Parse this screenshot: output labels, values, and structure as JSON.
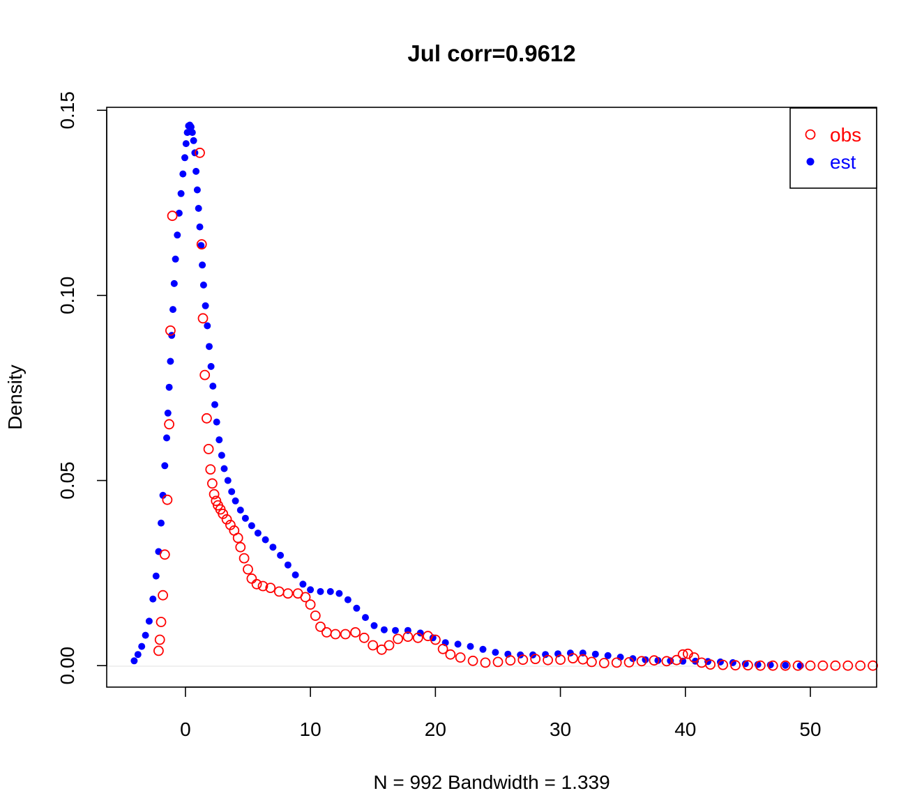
{
  "chart_data": {
    "type": "scatter",
    "title": "Jul corr=0.9612",
    "xlabel": "N = 992   Bandwidth = 1.339",
    "ylabel": "Density",
    "xlim": [
      -6.3,
      55.3
    ],
    "ylim": [
      -0.0058,
      0.1508
    ],
    "x_ticks": [
      0,
      10,
      20,
      30,
      40,
      50
    ],
    "x_tick_labels": [
      "0",
      "10",
      "20",
      "30",
      "40",
      "50"
    ],
    "y_ticks": [
      0.0,
      0.05,
      0.1,
      0.15
    ],
    "y_tick_labels": [
      "0.00",
      "0.05",
      "0.10",
      "0.15"
    ],
    "zero_line": true,
    "grid": false,
    "legend": {
      "position": "top-right"
    },
    "series": [
      {
        "name": "obs",
        "marker": "open-circle",
        "color": "#ff0000",
        "points": [
          [
            -2.15,
            0.004
          ],
          [
            -2.05,
            0.007
          ],
          [
            -1.95,
            0.0118
          ],
          [
            -1.8,
            0.019
          ],
          [
            -1.65,
            0.03
          ],
          [
            -1.45,
            0.0448
          ],
          [
            -1.3,
            0.0652
          ],
          [
            -1.2,
            0.0905
          ],
          [
            -1.05,
            0.1215
          ],
          [
            1.15,
            0.1385
          ],
          [
            1.3,
            0.1138
          ],
          [
            1.4,
            0.0938
          ],
          [
            1.55,
            0.0785
          ],
          [
            1.7,
            0.0668
          ],
          [
            1.85,
            0.0585
          ],
          [
            2.0,
            0.053
          ],
          [
            2.15,
            0.0492
          ],
          [
            2.3,
            0.0463
          ],
          [
            2.45,
            0.0445
          ],
          [
            2.6,
            0.0433
          ],
          [
            2.8,
            0.0422
          ],
          [
            3.0,
            0.041
          ],
          [
            3.3,
            0.0395
          ],
          [
            3.6,
            0.038
          ],
          [
            3.9,
            0.0365
          ],
          [
            4.2,
            0.0345
          ],
          [
            4.4,
            0.032
          ],
          [
            4.7,
            0.029
          ],
          [
            5.0,
            0.026
          ],
          [
            5.3,
            0.0235
          ],
          [
            5.7,
            0.022
          ],
          [
            6.2,
            0.0215
          ],
          [
            6.8,
            0.021
          ],
          [
            7.5,
            0.02
          ],
          [
            8.2,
            0.0195
          ],
          [
            9.0,
            0.0195
          ],
          [
            9.6,
            0.0185
          ],
          [
            10.0,
            0.0165
          ],
          [
            10.4,
            0.0135
          ],
          [
            10.8,
            0.0105
          ],
          [
            11.3,
            0.009
          ],
          [
            12.0,
            0.0085
          ],
          [
            12.8,
            0.0085
          ],
          [
            13.6,
            0.009
          ],
          [
            14.3,
            0.0075
          ],
          [
            15.0,
            0.0055
          ],
          [
            15.7,
            0.0043
          ],
          [
            16.3,
            0.0055
          ],
          [
            17.0,
            0.0072
          ],
          [
            17.8,
            0.0078
          ],
          [
            18.6,
            0.0075
          ],
          [
            19.4,
            0.008
          ],
          [
            20.0,
            0.007
          ],
          [
            20.6,
            0.0045
          ],
          [
            21.2,
            0.003
          ],
          [
            22.0,
            0.0022
          ],
          [
            23.0,
            0.0013
          ],
          [
            24.0,
            0.0008
          ],
          [
            25.0,
            0.001
          ],
          [
            26.0,
            0.0014
          ],
          [
            27.0,
            0.0016
          ],
          [
            28.0,
            0.0018
          ],
          [
            29.0,
            0.0015
          ],
          [
            30.0,
            0.0016
          ],
          [
            31.0,
            0.002
          ],
          [
            31.8,
            0.0017
          ],
          [
            32.5,
            0.001
          ],
          [
            33.5,
            0.0007
          ],
          [
            34.5,
            0.0008
          ],
          [
            35.5,
            0.0009
          ],
          [
            36.5,
            0.0012
          ],
          [
            37.5,
            0.0014
          ],
          [
            38.5,
            0.0012
          ],
          [
            39.3,
            0.0015
          ],
          [
            39.8,
            0.003
          ],
          [
            40.2,
            0.0032
          ],
          [
            40.7,
            0.0022
          ],
          [
            41.3,
            0.0008
          ],
          [
            42.0,
            0.0003
          ],
          [
            43.0,
            0.0002
          ],
          [
            44.0,
            0.0001
          ],
          [
            45.0,
            0.0001
          ],
          [
            46.0,
            0.0
          ],
          [
            47.0,
            0.0
          ],
          [
            48.0,
            0.0
          ],
          [
            49.0,
            0.0
          ],
          [
            50.0,
            0.0
          ],
          [
            51.0,
            0.0
          ],
          [
            52.0,
            0.0
          ],
          [
            53.0,
            0.0
          ],
          [
            54.0,
            0.0
          ],
          [
            55.0,
            0.0
          ]
        ]
      },
      {
        "name": "est",
        "marker": "filled-circle",
        "color": "#0000ff",
        "points": [
          [
            -4.1,
            0.0013
          ],
          [
            -3.8,
            0.003
          ],
          [
            -3.5,
            0.0052
          ],
          [
            -3.2,
            0.0082
          ],
          [
            -2.9,
            0.012
          ],
          [
            -2.6,
            0.018
          ],
          [
            -2.35,
            0.0242
          ],
          [
            -2.15,
            0.0308
          ],
          [
            -1.95,
            0.0385
          ],
          [
            -1.8,
            0.046
          ],
          [
            -1.65,
            0.054
          ],
          [
            -1.5,
            0.0615
          ],
          [
            -1.4,
            0.0682
          ],
          [
            -1.3,
            0.0752
          ],
          [
            -1.2,
            0.0822
          ],
          [
            -1.1,
            0.0892
          ],
          [
            -1.0,
            0.0962
          ],
          [
            -0.9,
            0.1032
          ],
          [
            -0.8,
            0.1098
          ],
          [
            -0.65,
            0.1163
          ],
          [
            -0.5,
            0.1222
          ],
          [
            -0.35,
            0.1275
          ],
          [
            -0.2,
            0.1328
          ],
          [
            -0.05,
            0.1372
          ],
          [
            0.05,
            0.141
          ],
          [
            0.15,
            0.144
          ],
          [
            0.25,
            0.1458
          ],
          [
            0.35,
            0.146
          ],
          [
            0.45,
            0.1455
          ],
          [
            0.55,
            0.144
          ],
          [
            0.65,
            0.1418
          ],
          [
            0.75,
            0.1385
          ],
          [
            0.85,
            0.1335
          ],
          [
            0.95,
            0.1285
          ],
          [
            1.05,
            0.1235
          ],
          [
            1.15,
            0.1185
          ],
          [
            1.25,
            0.1135
          ],
          [
            1.35,
            0.1082
          ],
          [
            1.45,
            0.1028
          ],
          [
            1.6,
            0.0972
          ],
          [
            1.75,
            0.0918
          ],
          [
            1.9,
            0.0862
          ],
          [
            2.05,
            0.0808
          ],
          [
            2.2,
            0.0755
          ],
          [
            2.35,
            0.0705
          ],
          [
            2.5,
            0.0658
          ],
          [
            2.7,
            0.061
          ],
          [
            2.9,
            0.0568
          ],
          [
            3.1,
            0.0532
          ],
          [
            3.4,
            0.05
          ],
          [
            3.7,
            0.047
          ],
          [
            4.0,
            0.0445
          ],
          [
            4.4,
            0.042
          ],
          [
            4.8,
            0.0398
          ],
          [
            5.3,
            0.0378
          ],
          [
            5.8,
            0.0358
          ],
          [
            6.4,
            0.034
          ],
          [
            7.0,
            0.032
          ],
          [
            7.6,
            0.0298
          ],
          [
            8.2,
            0.0272
          ],
          [
            8.8,
            0.0245
          ],
          [
            9.4,
            0.022
          ],
          [
            10.0,
            0.0205
          ],
          [
            10.8,
            0.02
          ],
          [
            11.6,
            0.02
          ],
          [
            12.3,
            0.0195
          ],
          [
            13.0,
            0.0178
          ],
          [
            13.7,
            0.0155
          ],
          [
            14.4,
            0.013
          ],
          [
            15.1,
            0.0108
          ],
          [
            15.9,
            0.0097
          ],
          [
            16.8,
            0.0095
          ],
          [
            17.8,
            0.0095
          ],
          [
            18.8,
            0.0088
          ],
          [
            19.8,
            0.0075
          ],
          [
            20.8,
            0.0062
          ],
          [
            21.8,
            0.0058
          ],
          [
            22.8,
            0.0052
          ],
          [
            23.8,
            0.0044
          ],
          [
            24.8,
            0.0036
          ],
          [
            25.8,
            0.0031
          ],
          [
            26.8,
            0.0029
          ],
          [
            27.8,
            0.0029
          ],
          [
            28.8,
            0.003
          ],
          [
            29.8,
            0.0032
          ],
          [
            30.8,
            0.0034
          ],
          [
            31.8,
            0.0034
          ],
          [
            32.8,
            0.0031
          ],
          [
            33.8,
            0.0027
          ],
          [
            34.8,
            0.0023
          ],
          [
            35.8,
            0.0019
          ],
          [
            36.8,
            0.0016
          ],
          [
            37.8,
            0.0014
          ],
          [
            38.8,
            0.0013
          ],
          [
            39.8,
            0.0012
          ],
          [
            40.8,
            0.0012
          ],
          [
            41.8,
            0.0011
          ],
          [
            42.8,
            0.001
          ],
          [
            43.8,
            0.0008
          ],
          [
            44.8,
            0.0005
          ],
          [
            45.8,
            0.0003
          ],
          [
            46.8,
            0.0002
          ],
          [
            48.0,
            0.0001
          ],
          [
            49.2,
            0.0
          ]
        ]
      }
    ]
  }
}
